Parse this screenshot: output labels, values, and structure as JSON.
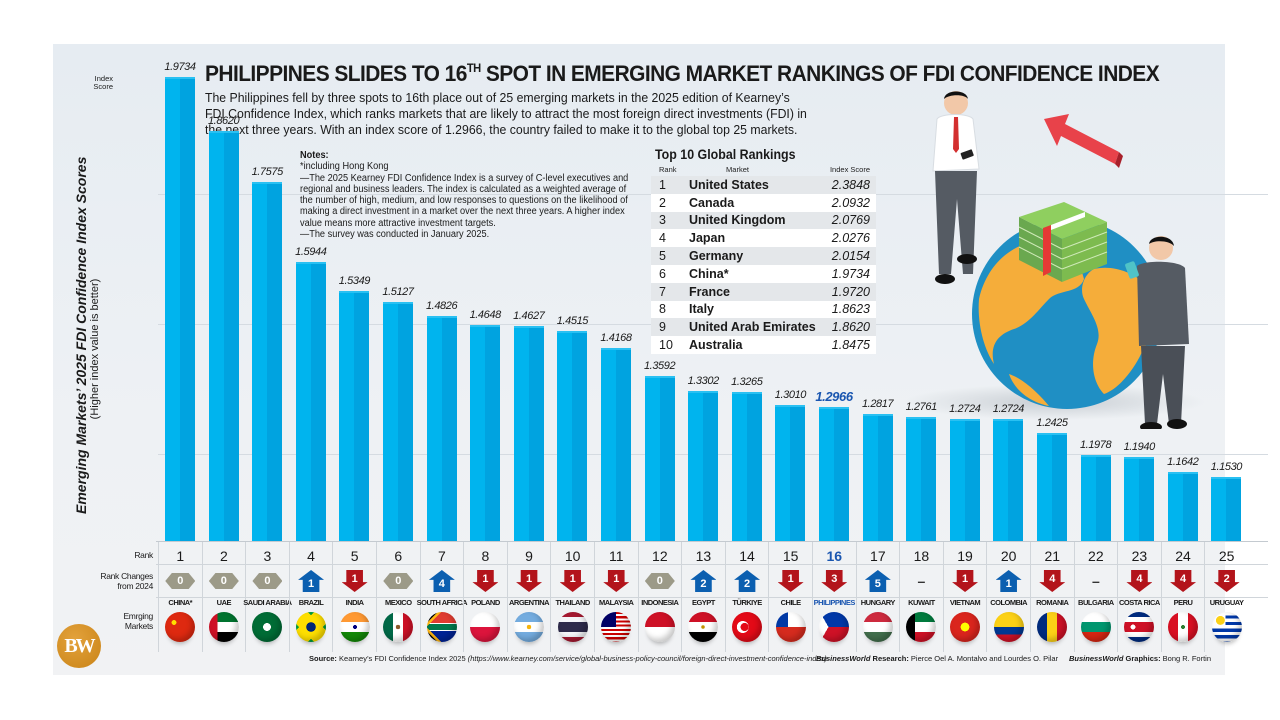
{
  "header": {
    "title_main": "PHILIPPINES SLIDES TO 16",
    "title_sup": "TH",
    "title_rest": " SPOT IN EMERGING MARKET RANKINGS OF FDI CONFIDENCE INDEX",
    "lede": "The Philippines fell by three spots to 16th place out of 25 emerging markets in the 2025 edition of Kearney’s FDI Confidence Index, which ranks markets that are likely to attract the most foreign direct investments (FDI) in the next three years. With an index score of 1.2966, the country failed to make it to the global top 25 markets."
  },
  "notes": {
    "heading": "Notes:",
    "lines": [
      "*including Hong Kong",
      "—The 2025 Kearney FDI Confidence Index is a survey of C-level executives and regional and business leaders. The index is calculated as a weighted average of the number of high, medium, and low responses to questions on the likelihood of making a direct investment in a market over the next three years. A higher index value means more attractive investment targets.",
      "—The survey was conducted in January 2025."
    ]
  },
  "top10": {
    "title": "Top 10 Global Rankings",
    "headers": {
      "rank": "Rank",
      "market": "Market",
      "score": "Index Score"
    },
    "rows": [
      {
        "rank": "1",
        "market": "United States",
        "score": "2.3848"
      },
      {
        "rank": "2",
        "market": "Canada",
        "score": "2.0932"
      },
      {
        "rank": "3",
        "market": "United Kingdom",
        "score": "2.0769"
      },
      {
        "rank": "4",
        "market": "Japan",
        "score": "2.0276"
      },
      {
        "rank": "5",
        "market": "Germany",
        "score": "2.0154"
      },
      {
        "rank": "6",
        "market": "China*",
        "score": "1.9734"
      },
      {
        "rank": "7",
        "market": "France",
        "score": "1.9720"
      },
      {
        "rank": "8",
        "market": "Italy",
        "score": "1.8623"
      },
      {
        "rank": "9",
        "market": "United Arab Emirates",
        "score": "1.8620"
      },
      {
        "rank": "10",
        "market": "Australia",
        "score": "1.8475"
      }
    ]
  },
  "axis": {
    "ylabel": "Emerging Markets’ 2025 FDI Confidence Index Scores",
    "ylabel_sub": "(Higher index value is better)",
    "index_score_label_1": "Index",
    "index_score_label_2": "Score"
  },
  "row_labels": {
    "rank": "Rank",
    "changes_1": "Rank Changes",
    "changes_2": "from 2024",
    "markets_1": "Emrging",
    "markets_2": "Markets"
  },
  "colors": {
    "bar": "#00b4ee",
    "bar_shade": "#00a3e0",
    "highlight": "#1a56b0",
    "up": "#0b5fb0",
    "down": "#b3141b",
    "neutral": "#9c9a88",
    "logo": "#d08a1c"
  },
  "chart_data": {
    "type": "bar",
    "title": "Philippines slides to 16th spot in emerging market rankings of FDI Confidence Index",
    "xlabel": "Emerging Markets",
    "ylabel": "Emerging Markets’ 2025 FDI Confidence Index Scores (Higher index value is better)",
    "grid": true,
    "categories": [
      "CHINA*",
      "UAE",
      "SAUDI ARABIA",
      "BRAZIL",
      "INDIA",
      "MEXICO",
      "SOUTH AFRICA",
      "POLAND",
      "ARGENTINA",
      "THAILAND",
      "MALAYSIA",
      "INDONESIA",
      "EGYPT",
      "TÜRKIYE",
      "CHILE",
      "PHILIPPINES",
      "HUNGARY",
      "KUWAIT",
      "VIETNAM",
      "COLOMBIA",
      "ROMANIA",
      "BULGARIA",
      "COSTA RICA",
      "PERU",
      "URUGUAY"
    ],
    "values": [
      1.9734,
      1.862,
      1.7575,
      1.5944,
      1.5349,
      1.5127,
      1.4826,
      1.4648,
      1.4627,
      1.4515,
      1.4168,
      1.3592,
      1.3302,
      1.3265,
      1.301,
      1.2966,
      1.2817,
      1.2761,
      1.2724,
      1.2724,
      1.2425,
      1.1978,
      1.194,
      1.1642,
      1.153
    ],
    "value_labels": [
      "1.9734",
      "1.8620",
      "1.7575",
      "1.5944",
      "1.5349",
      "1.5127",
      "1.4826",
      "1.4648",
      "1.4627",
      "1.4515",
      "1.4168",
      "1.3592",
      "1.3302",
      "1.3265",
      "1.3010",
      "1.2966",
      "1.2817",
      "1.2761",
      "1.2724",
      "1.2724",
      "1.2425",
      "1.1978",
      "1.1940",
      "1.1642",
      "1.1530"
    ],
    "ranks": [
      1,
      2,
      3,
      4,
      5,
      6,
      7,
      8,
      9,
      10,
      11,
      12,
      13,
      14,
      15,
      16,
      17,
      18,
      19,
      20,
      21,
      22,
      23,
      24,
      25
    ],
    "rank_changes_from_2024": [
      {
        "dir": "same",
        "n": "0"
      },
      {
        "dir": "same",
        "n": "0"
      },
      {
        "dir": "same",
        "n": "0"
      },
      {
        "dir": "up",
        "n": "1"
      },
      {
        "dir": "down",
        "n": "1"
      },
      {
        "dir": "same",
        "n": "0"
      },
      {
        "dir": "up",
        "n": "4"
      },
      {
        "dir": "down",
        "n": "1"
      },
      {
        "dir": "down",
        "n": "1"
      },
      {
        "dir": "down",
        "n": "1"
      },
      {
        "dir": "down",
        "n": "1"
      },
      {
        "dir": "same",
        "n": "0"
      },
      {
        "dir": "up",
        "n": "2"
      },
      {
        "dir": "up",
        "n": "2"
      },
      {
        "dir": "down",
        "n": "1"
      },
      {
        "dir": "down",
        "n": "3"
      },
      {
        "dir": "up",
        "n": "5"
      },
      {
        "dir": "new",
        "n": "–"
      },
      {
        "dir": "down",
        "n": "1"
      },
      {
        "dir": "up",
        "n": "1"
      },
      {
        "dir": "down",
        "n": "4"
      },
      {
        "dir": "new",
        "n": "–"
      },
      {
        "dir": "down",
        "n": "4"
      },
      {
        "dir": "down",
        "n": "4"
      },
      {
        "dir": "down",
        "n": "2"
      }
    ],
    "highlight": "PHILIPPINES",
    "ylim": [
      1.0,
      2.0
    ]
  },
  "footer": {
    "source_label": "Source:",
    "source_text": " Kearney’s FDI Confidence Index 2025 ",
    "source_url": "(https://www.kearney.com/service/global-business-policy-council/foreign-direct-investment-confidence-index)",
    "research_brand": "BusinessWorld",
    "research_label": " Research:",
    "research_text": " Pierce Oel A. Montalvo and Lourdes O. Pilar",
    "graphics_brand": "BusinessWorld",
    "graphics_label": " Graphics:",
    "graphics_text": " Bong R. Fortin"
  },
  "logo": {
    "text": "BW"
  }
}
